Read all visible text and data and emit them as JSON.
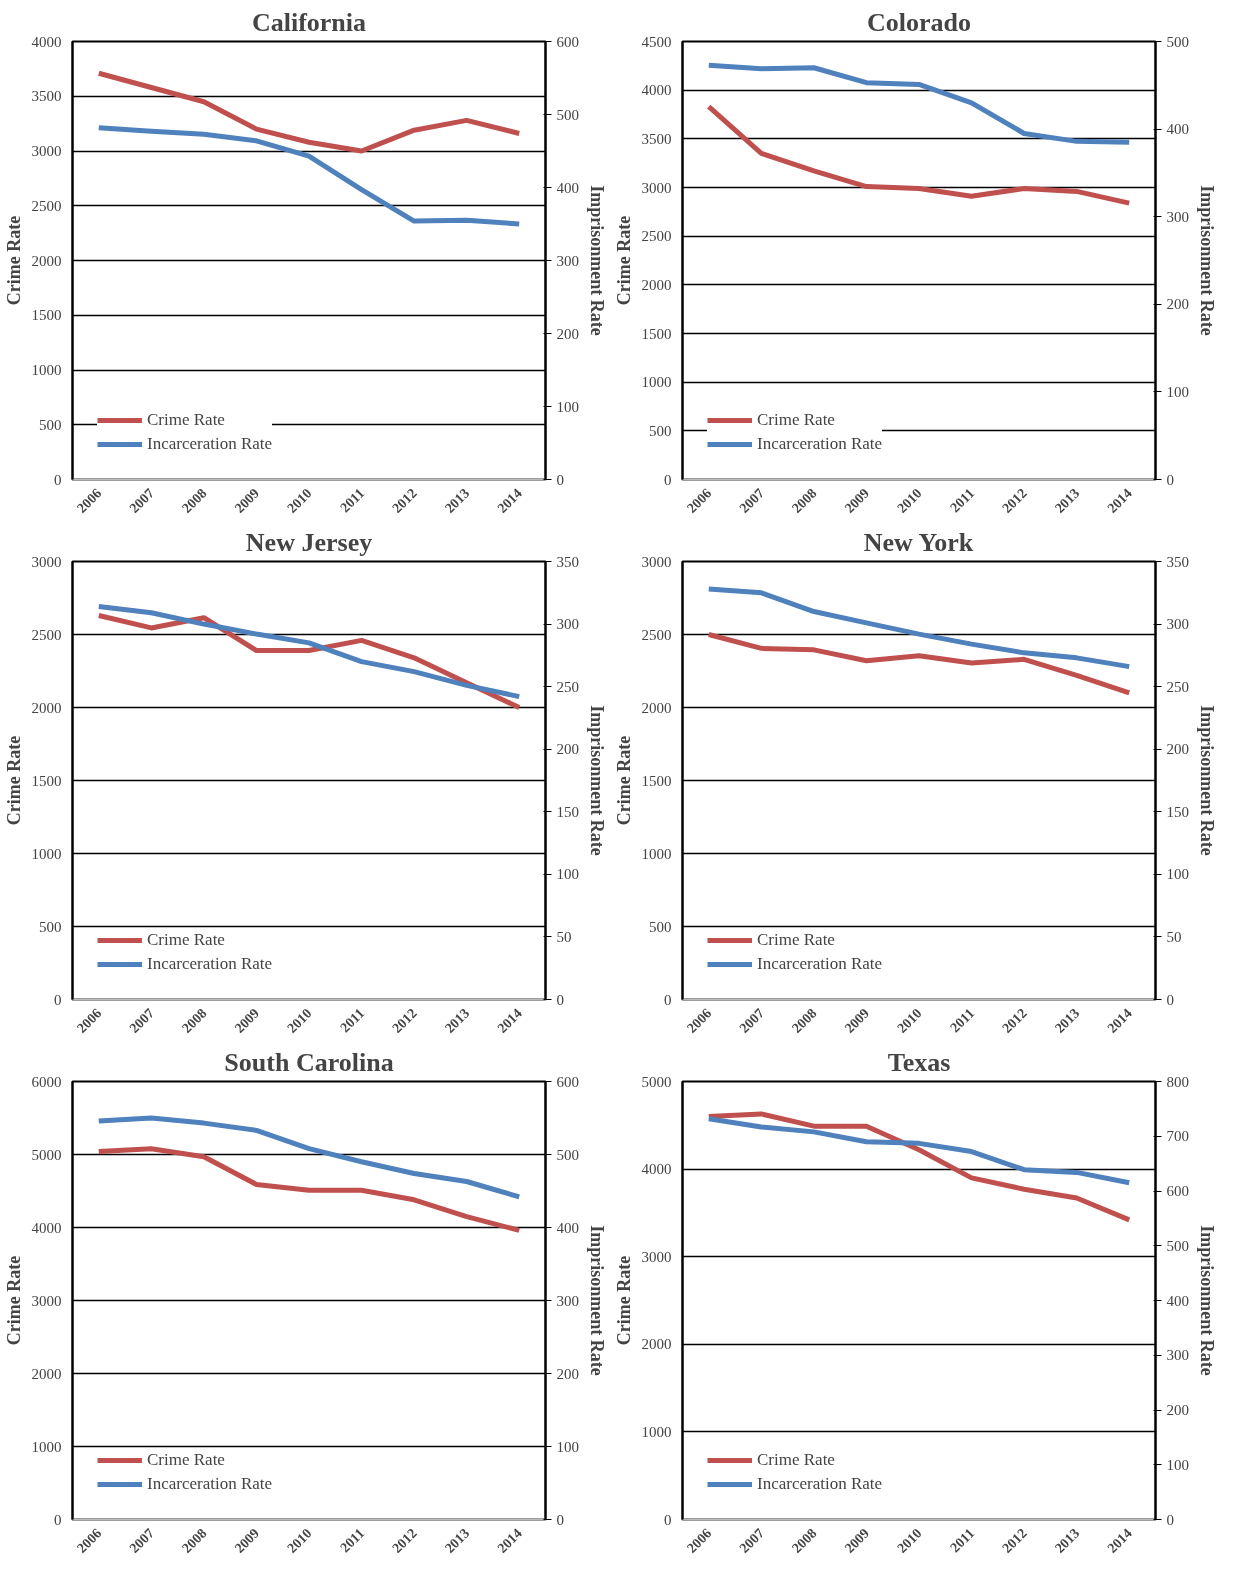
{
  "chart_data": [
    {
      "type": "line",
      "title": "California",
      "ylabel": "Crime Rate",
      "y2label": "Imprisonment Rate",
      "categories": [
        "2006",
        "2007",
        "2008",
        "2009",
        "2010",
        "2011",
        "2012",
        "2013",
        "2014"
      ],
      "ylim": [
        0,
        4000
      ],
      "yticks": [
        0,
        500,
        1000,
        1500,
        2000,
        2500,
        3000,
        3500,
        4000
      ],
      "y2lim": [
        0,
        600
      ],
      "y2ticks": [
        0,
        100,
        200,
        300,
        400,
        500,
        600
      ],
      "grid": "y",
      "legend": "bottom left",
      "series": [
        {
          "name": "Crime Rate",
          "color": "#c0504d",
          "values": [
            3710,
            3580,
            3450,
            3200,
            3080,
            3000,
            3190,
            3280,
            3160
          ]
        },
        {
          "name": "Incarceration Rate",
          "color": "#4f81bd",
          "axis": "y2",
          "values": [
            482,
            477,
            473,
            464,
            443,
            397,
            354,
            355,
            350
          ]
        }
      ]
    },
    {
      "type": "line",
      "title": "Colorado",
      "ylabel": "Crime Rate",
      "y2label": "Imprisonment Rate",
      "categories": [
        "2006",
        "2007",
        "2008",
        "2009",
        "2010",
        "2011",
        "2012",
        "2013",
        "2014"
      ],
      "ylim": [
        0,
        4500
      ],
      "yticks": [
        0,
        500,
        1000,
        1500,
        2000,
        2500,
        3000,
        3500,
        4000,
        4500
      ],
      "y2lim": [
        0,
        500
      ],
      "y2ticks": [
        0,
        100,
        200,
        300,
        400,
        500
      ],
      "grid": "y",
      "legend": "bottom left",
      "series": [
        {
          "name": "Crime Rate",
          "color": "#c0504d",
          "values": [
            3830,
            3350,
            3170,
            3010,
            2990,
            2910,
            2990,
            2960,
            2840
          ]
        },
        {
          "name": "Incarceration Rate",
          "color": "#4f81bd",
          "axis": "y2",
          "values": [
            473,
            469,
            470,
            453,
            451,
            430,
            395,
            386,
            385
          ]
        }
      ]
    },
    {
      "type": "line",
      "title": "New Jersey",
      "ylabel": "Crime Rate",
      "y2label": "Imprisonment Rate",
      "categories": [
        "2006",
        "2007",
        "2008",
        "2009",
        "2010",
        "2011",
        "2012",
        "2013",
        "2014"
      ],
      "ylim": [
        0,
        3000
      ],
      "yticks": [
        0,
        500,
        1000,
        1500,
        2000,
        2500,
        3000
      ],
      "y2lim": [
        0,
        350
      ],
      "y2ticks": [
        0,
        50,
        100,
        150,
        200,
        250,
        300,
        350
      ],
      "grid": "y",
      "legend": "bottom left",
      "series": [
        {
          "name": "Crime Rate",
          "color": "#c0504d",
          "values": [
            2630,
            2545,
            2615,
            2390,
            2390,
            2460,
            2340,
            2170,
            2000
          ]
        },
        {
          "name": "Incarceration Rate",
          "color": "#4f81bd",
          "axis": "y2",
          "values": [
            314,
            309,
            300,
            292,
            285,
            270,
            262,
            251,
            242
          ]
        }
      ]
    },
    {
      "type": "line",
      "title": "New York",
      "ylabel": "Crime Rate",
      "y2label": "Imprisonment Rate",
      "categories": [
        "2006",
        "2007",
        "2008",
        "2009",
        "2010",
        "2011",
        "2012",
        "2013",
        "2014"
      ],
      "ylim": [
        0,
        3000
      ],
      "yticks": [
        0,
        500,
        1000,
        1500,
        2000,
        2500,
        3000
      ],
      "y2lim": [
        0,
        350
      ],
      "y2ticks": [
        0,
        50,
        100,
        150,
        200,
        250,
        300,
        350
      ],
      "grid": "y",
      "legend": "bottom left",
      "series": [
        {
          "name": "Crime Rate",
          "color": "#c0504d",
          "values": [
            2500,
            2405,
            2395,
            2320,
            2355,
            2305,
            2330,
            2220,
            2100
          ]
        },
        {
          "name": "Incarceration Rate",
          "color": "#4f81bd",
          "axis": "y2",
          "values": [
            328,
            325,
            310,
            301,
            292,
            284,
            277,
            273,
            266
          ]
        }
      ]
    },
    {
      "type": "line",
      "title": "South Carolina",
      "ylabel": "Crime Rate",
      "y2label": "Imprisonment Rate",
      "categories": [
        "2006",
        "2007",
        "2008",
        "2009",
        "2010",
        "2011",
        "2012",
        "2013",
        "2014"
      ],
      "ylim": [
        0,
        6000
      ],
      "yticks": [
        0,
        1000,
        2000,
        3000,
        4000,
        5000,
        6000
      ],
      "y2lim": [
        0,
        600
      ],
      "y2ticks": [
        0,
        100,
        200,
        300,
        400,
        500,
        600
      ],
      "grid": "y",
      "legend": "bottom left",
      "series": [
        {
          "name": "Crime Rate",
          "color": "#c0504d",
          "values": [
            5040,
            5080,
            4970,
            4590,
            4510,
            4510,
            4380,
            4150,
            3960
          ]
        },
        {
          "name": "Incarceration Rate",
          "color": "#4f81bd",
          "axis": "y2",
          "values": [
            546,
            550,
            543,
            533,
            508,
            490,
            474,
            463,
            442
          ]
        }
      ]
    },
    {
      "type": "line",
      "title": "Texas",
      "ylabel": "Crime Rate",
      "y2label": "Imprisonment Rate",
      "categories": [
        "2006",
        "2007",
        "2008",
        "2009",
        "2010",
        "2011",
        "2012",
        "2013",
        "2014"
      ],
      "ylim": [
        0,
        5000
      ],
      "yticks": [
        0,
        1000,
        2000,
        3000,
        4000,
        5000
      ],
      "y2lim": [
        0,
        800
      ],
      "y2ticks": [
        0,
        100,
        200,
        300,
        400,
        500,
        600,
        700,
        800
      ],
      "grid": "y",
      "legend": "bottom left",
      "series": [
        {
          "name": "Crime Rate",
          "color": "#c0504d",
          "values": [
            4600,
            4630,
            4490,
            4490,
            4220,
            3900,
            3770,
            3670,
            3420
          ]
        },
        {
          "name": "Incarceration Rate",
          "color": "#4f81bd",
          "axis": "y2",
          "values": [
            732,
            717,
            708,
            690,
            687,
            672,
            639,
            634,
            615
          ]
        }
      ]
    }
  ]
}
